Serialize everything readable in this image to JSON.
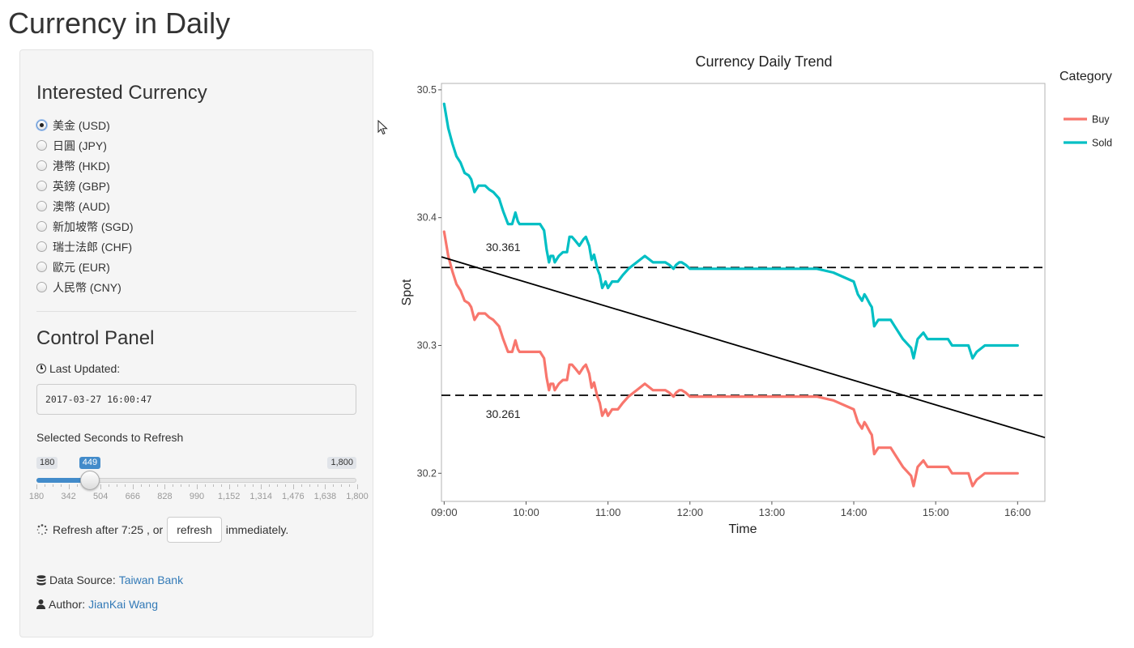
{
  "page": {
    "title": "Currency in Daily"
  },
  "sidebar": {
    "currency_heading": "Interested Currency",
    "currencies": [
      {
        "label": "美金 (USD)",
        "checked": true
      },
      {
        "label": "日圓 (JPY)",
        "checked": false
      },
      {
        "label": "港幣 (HKD)",
        "checked": false
      },
      {
        "label": "英鎊 (GBP)",
        "checked": false
      },
      {
        "label": "澳幣 (AUD)",
        "checked": false
      },
      {
        "label": "新加坡幣 (SGD)",
        "checked": false
      },
      {
        "label": "瑞士法郎 (CHF)",
        "checked": false
      },
      {
        "label": "歐元 (EUR)",
        "checked": false
      },
      {
        "label": "人民幣 (CNY)",
        "checked": false
      }
    ],
    "control_heading": "Control Panel",
    "last_updated_label": "Last Updated:",
    "last_updated_value": "2017-03-27 16:00:47",
    "slider_label": "Selected Seconds to Refresh",
    "slider": {
      "min": 180,
      "max": 1800,
      "value": 449,
      "min_label": "180",
      "max_label": "1,800",
      "value_label": "449",
      "ticks": [
        "180",
        "342",
        "504",
        "666",
        "828",
        "990",
        "1,152",
        "1,314",
        "1,476",
        "1,638",
        "1,800"
      ]
    },
    "refresh_prefix": "Refresh after 7:25 , or",
    "refresh_button": "refresh",
    "refresh_suffix": "immediately.",
    "source_label": "Data Source:",
    "source_link": "Taiwan Bank",
    "author_label": "Author:",
    "author_link": "JianKai Wang"
  },
  "chart_data": {
    "type": "line",
    "title": "Currency Daily Trend",
    "xlabel": "Time",
    "ylabel": "Spot",
    "x_ticks": [
      "09:00",
      "10:00",
      "11:00",
      "12:00",
      "13:00",
      "14:00",
      "15:00",
      "16:00"
    ],
    "y_ticks": [
      30.2,
      30.3,
      30.4,
      30.5
    ],
    "xlim": [
      8.967,
      16.333
    ],
    "ylim": [
      30.178,
      30.505
    ],
    "legend_title": "Category",
    "legend_position": "right",
    "series": [
      {
        "name": "Buy",
        "color": "#F8766D",
        "x": [
          9.0,
          9.05,
          9.1,
          9.15,
          9.2,
          9.25,
          9.3,
          9.33,
          9.37,
          9.42,
          9.47,
          9.5,
          9.55,
          9.6,
          9.67,
          9.72,
          9.78,
          9.83,
          9.87,
          9.9,
          9.92,
          9.95,
          10.0,
          10.05,
          10.1,
          10.17,
          10.22,
          10.25,
          10.28,
          10.3,
          10.33,
          10.35,
          10.4,
          10.45,
          10.5,
          10.53,
          10.56,
          10.6,
          10.65,
          10.7,
          10.73,
          10.77,
          10.8,
          10.83,
          10.87,
          10.9,
          10.93,
          10.97,
          11.0,
          11.05,
          11.12,
          11.18,
          11.25,
          11.35,
          11.45,
          11.55,
          11.62,
          11.7,
          11.75,
          11.8,
          11.83,
          11.87,
          11.9,
          11.95,
          12.0,
          12.25,
          12.5,
          13.0,
          13.25,
          13.5,
          13.55,
          13.75,
          14.0,
          14.05,
          14.1,
          14.13,
          14.15,
          14.2,
          14.22,
          14.25,
          14.3,
          14.35,
          14.4,
          14.45,
          14.5,
          14.6,
          14.7,
          14.73,
          14.78,
          14.85,
          14.9,
          14.95,
          15.05,
          15.15,
          15.2,
          15.3,
          15.35,
          15.4,
          15.45,
          15.5,
          15.6,
          15.7,
          15.8,
          16.0
        ],
        "values": [
          30.389,
          30.37,
          30.358,
          30.348,
          30.343,
          30.335,
          30.333,
          30.33,
          30.32,
          30.325,
          30.325,
          30.325,
          30.322,
          30.32,
          30.315,
          30.305,
          30.295,
          30.295,
          30.304,
          30.297,
          30.295,
          30.295,
          30.295,
          30.295,
          30.295,
          30.295,
          30.29,
          30.275,
          30.265,
          30.27,
          30.27,
          30.265,
          30.27,
          30.273,
          30.273,
          30.285,
          30.285,
          30.282,
          30.278,
          30.283,
          30.285,
          30.278,
          30.267,
          30.271,
          30.26,
          30.255,
          30.245,
          30.25,
          30.245,
          30.25,
          30.25,
          30.255,
          30.26,
          30.265,
          30.27,
          30.265,
          30.265,
          30.265,
          30.263,
          30.26,
          30.263,
          30.265,
          30.265,
          30.263,
          30.26,
          30.26,
          30.26,
          30.26,
          30.26,
          30.26,
          30.26,
          30.257,
          30.25,
          30.24,
          30.235,
          30.24,
          30.238,
          30.232,
          30.23,
          30.215,
          30.22,
          30.22,
          30.22,
          30.22,
          30.215,
          30.205,
          30.198,
          30.19,
          30.205,
          30.21,
          30.205,
          30.205,
          30.205,
          30.205,
          30.2,
          30.2,
          30.2,
          30.2,
          30.19,
          30.195,
          30.2,
          30.2,
          30.2,
          30.2
        ]
      },
      {
        "name": "Sold",
        "color": "#00BFC4",
        "x": [
          9.0,
          9.05,
          9.1,
          9.15,
          9.2,
          9.25,
          9.3,
          9.33,
          9.37,
          9.42,
          9.47,
          9.5,
          9.55,
          9.6,
          9.67,
          9.72,
          9.78,
          9.83,
          9.87,
          9.9,
          9.92,
          9.95,
          10.0,
          10.05,
          10.1,
          10.17,
          10.22,
          10.25,
          10.28,
          10.3,
          10.33,
          10.35,
          10.4,
          10.45,
          10.5,
          10.53,
          10.56,
          10.6,
          10.65,
          10.7,
          10.73,
          10.77,
          10.8,
          10.83,
          10.87,
          10.9,
          10.93,
          10.97,
          11.0,
          11.05,
          11.12,
          11.18,
          11.25,
          11.35,
          11.45,
          11.55,
          11.62,
          11.7,
          11.75,
          11.8,
          11.83,
          11.87,
          11.9,
          11.95,
          12.0,
          12.25,
          12.5,
          13.0,
          13.25,
          13.5,
          13.55,
          13.75,
          14.0,
          14.05,
          14.1,
          14.13,
          14.15,
          14.2,
          14.22,
          14.25,
          14.3,
          14.35,
          14.4,
          14.45,
          14.5,
          14.6,
          14.7,
          14.73,
          14.78,
          14.85,
          14.9,
          14.95,
          15.05,
          15.15,
          15.2,
          15.3,
          15.35,
          15.4,
          15.45,
          15.5,
          15.6,
          15.7,
          15.8,
          16.0
        ],
        "values": [
          30.489,
          30.47,
          30.458,
          30.448,
          30.443,
          30.435,
          30.433,
          30.43,
          30.42,
          30.425,
          30.425,
          30.425,
          30.422,
          30.42,
          30.415,
          30.405,
          30.395,
          30.395,
          30.404,
          30.397,
          30.395,
          30.395,
          30.395,
          30.395,
          30.395,
          30.395,
          30.39,
          30.375,
          30.365,
          30.37,
          30.37,
          30.365,
          30.37,
          30.373,
          30.373,
          30.385,
          30.385,
          30.382,
          30.378,
          30.383,
          30.385,
          30.378,
          30.367,
          30.371,
          30.36,
          30.355,
          30.345,
          30.35,
          30.345,
          30.35,
          30.35,
          30.355,
          30.36,
          30.365,
          30.37,
          30.365,
          30.365,
          30.365,
          30.363,
          30.36,
          30.363,
          30.365,
          30.365,
          30.363,
          30.36,
          30.36,
          30.36,
          30.36,
          30.36,
          30.36,
          30.36,
          30.357,
          30.35,
          30.34,
          30.335,
          30.34,
          30.338,
          30.332,
          30.33,
          30.315,
          30.32,
          30.32,
          30.32,
          30.32,
          30.315,
          30.305,
          30.298,
          30.29,
          30.305,
          30.31,
          30.305,
          30.305,
          30.305,
          30.305,
          30.3,
          30.3,
          30.3,
          30.3,
          30.29,
          30.295,
          30.3,
          30.3,
          30.3,
          30.3
        ]
      }
    ],
    "reference_lines": [
      {
        "value": 30.361,
        "label": "30.361",
        "style": "dashed"
      },
      {
        "value": 30.261,
        "label": "30.261",
        "style": "dashed"
      }
    ],
    "trend_line": {
      "x": [
        8.67,
        16.33
      ],
      "values": [
        30.375,
        30.228
      ]
    }
  }
}
